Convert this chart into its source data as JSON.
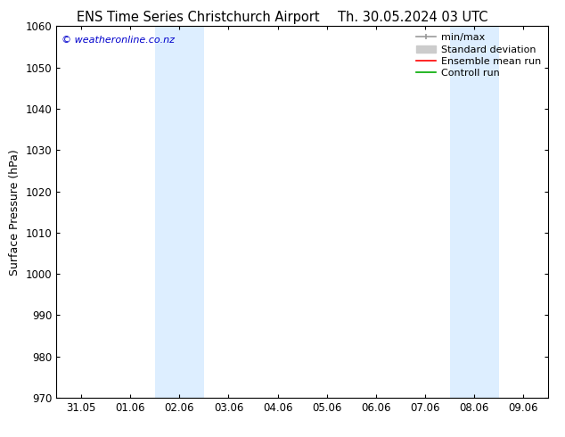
{
  "title_left": "ENS Time Series Christchurch Airport",
  "title_right": "Th. 30.05.2024 03 UTC",
  "ylabel": "Surface Pressure (hPa)",
  "ylim": [
    970,
    1060
  ],
  "yticks": [
    970,
    980,
    990,
    1000,
    1010,
    1020,
    1030,
    1040,
    1050,
    1060
  ],
  "x_labels": [
    "31.05",
    "01.06",
    "02.06",
    "03.06",
    "04.06",
    "05.06",
    "06.06",
    "07.06",
    "08.06",
    "09.06"
  ],
  "x_positions": [
    0,
    1,
    2,
    3,
    4,
    5,
    6,
    7,
    8,
    9
  ],
  "xlim": [
    -0.5,
    9.5
  ],
  "shaded_bands": [
    {
      "xmin": 1.5,
      "xmax": 2.0
    },
    {
      "xmin": 2.0,
      "xmax": 2.5
    },
    {
      "xmin": 7.5,
      "xmax": 8.0
    },
    {
      "xmin": 8.0,
      "xmax": 8.5
    }
  ],
  "shade_color": "#ddeeff",
  "background_color": "#ffffff",
  "watermark_text": "© weatheronline.co.nz",
  "watermark_color": "#0000cc",
  "legend_items": [
    {
      "label": "min/max",
      "color": "#999999",
      "lw": 1.2
    },
    {
      "label": "Standard deviation",
      "color": "#cccccc",
      "lw": 5
    },
    {
      "label": "Ensemble mean run",
      "color": "#ff0000",
      "lw": 1.2
    },
    {
      "label": "Controll run",
      "color": "#00aa00",
      "lw": 1.2
    }
  ],
  "title_fontsize": 10.5,
  "ylabel_fontsize": 9,
  "tick_fontsize": 8.5,
  "legend_fontsize": 8,
  "watermark_fontsize": 8
}
